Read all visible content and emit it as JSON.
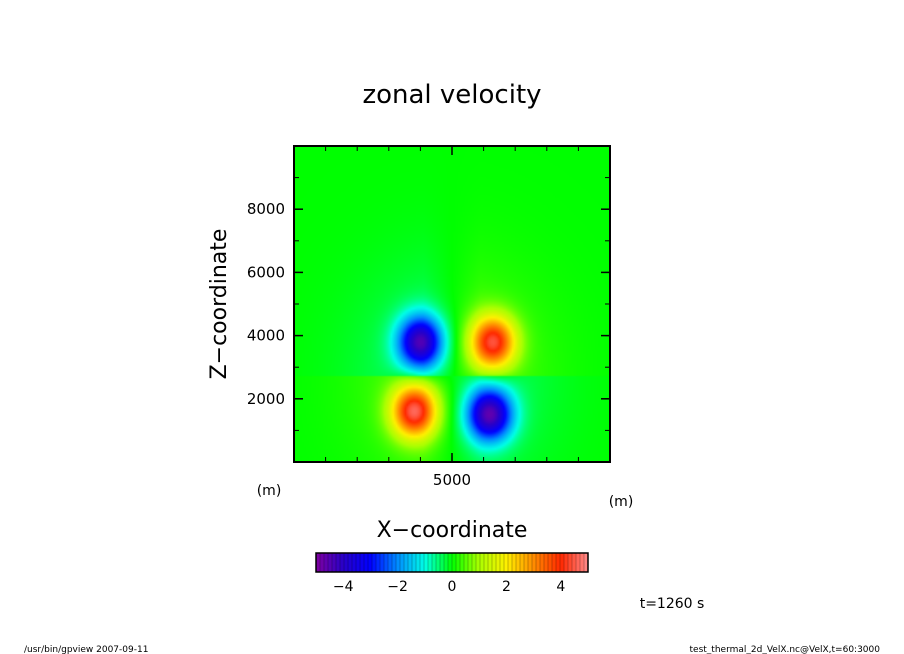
{
  "chart_data": {
    "type": "heatmap",
    "title": "zonal velocity",
    "xlabel": "X−coordinate",
    "ylabel": "Z−coordinate",
    "x_unit": "(m)",
    "y_unit": "(m)",
    "xlim": [
      0,
      10000
    ],
    "ylim": [
      0,
      10000
    ],
    "x_ticks": [
      {
        "value": 5000,
        "label": "5000"
      }
    ],
    "y_ticks": [
      {
        "value": 2000,
        "label": "2000"
      },
      {
        "value": 4000,
        "label": "4000"
      },
      {
        "value": 6000,
        "label": "6000"
      },
      {
        "value": 8000,
        "label": "8000"
      }
    ],
    "colorbar": {
      "range": [
        -5,
        5
      ],
      "ticks": [
        {
          "value": -4,
          "label": "−4"
        },
        {
          "value": -2,
          "label": "−2"
        },
        {
          "value": 0,
          "label": "0"
        },
        {
          "value": 2,
          "label": "2"
        },
        {
          "value": 4,
          "label": "4"
        }
      ]
    },
    "features": [
      {
        "x": 4000,
        "z": 3800,
        "value": -4
      },
      {
        "x": 6300,
        "z": 3800,
        "value": 4
      },
      {
        "x": 3800,
        "z": 1600,
        "value": 4.2
      },
      {
        "x": 6200,
        "z": 1500,
        "value": -4.2
      }
    ],
    "time_label": "t=1260 s"
  },
  "footer": {
    "left": "/usr/bin/gpview   2007-09-11",
    "right": "test_thermal_2d_VelX.nc@VelX,t=60:3000"
  }
}
